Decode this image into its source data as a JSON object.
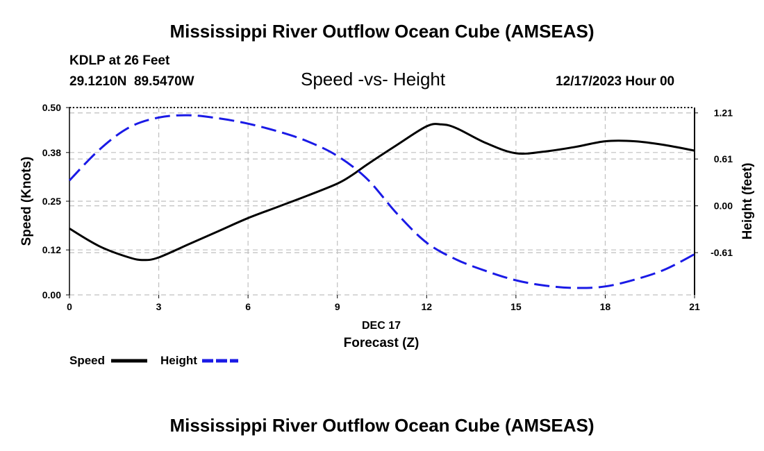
{
  "header": {
    "title_top": "Mississippi River Outflow Ocean Cube (AMSEAS)",
    "station": "KDLP at 26 Feet",
    "coords": "29.1210N  89.5470W",
    "subtitle": "Speed -vs- Height",
    "datetime": "12/17/2023 Hour 00",
    "title_bottom": "Mississippi River Outflow Ocean Cube (AMSEAS)"
  },
  "chart_data": {
    "type": "line",
    "title": "Speed -vs- Height",
    "xlabel_date": "DEC 17",
    "xlabel": "Forecast (Z)",
    "ylabel": "Speed (Knots)",
    "y2label": "Height (feet)",
    "xlim": [
      0,
      21
    ],
    "ylim": [
      0,
      0.5
    ],
    "y2lim": [
      -1.16,
      1.28
    ],
    "x_ticks": [
      0,
      3,
      6,
      9,
      12,
      15,
      18,
      21
    ],
    "y_ticks": [
      0,
      0.12,
      0.25,
      0.38,
      0.5
    ],
    "y_tick_labels": [
      "0.00",
      "0.12",
      "0.25",
      "0.38",
      "0.50"
    ],
    "y2_ticks": [
      -0.61,
      0,
      0.61,
      1.21
    ],
    "y2_tick_labels": [
      "-0.61",
      "0.00",
      "0.61",
      "1.21"
    ],
    "grid": true,
    "series": [
      {
        "name": "Speed",
        "axis": "left",
        "color": "#000000",
        "style": "solid",
        "x": [
          0,
          1,
          2,
          2.5,
          3,
          4,
          5,
          6,
          7,
          8,
          9,
          9.5,
          10,
          11,
          12,
          12.5,
          13,
          14,
          15,
          16,
          17,
          18,
          19,
          20,
          21
        ],
        "values": [
          0.177,
          0.13,
          0.1,
          0.093,
          0.1,
          0.135,
          0.17,
          0.205,
          0.235,
          0.265,
          0.297,
          0.32,
          0.348,
          0.4,
          0.45,
          0.455,
          0.445,
          0.405,
          0.378,
          0.383,
          0.395,
          0.41,
          0.41,
          0.4,
          0.385
        ]
      },
      {
        "name": "Height",
        "axis": "right",
        "color": "#1a1ae6",
        "style": "dashed",
        "x": [
          0,
          1,
          2,
          3,
          4,
          5,
          6,
          7,
          8,
          9,
          10,
          11,
          12,
          13,
          14,
          15,
          16,
          17,
          18,
          19,
          20,
          21
        ],
        "values": [
          0.33,
          0.73,
          1.02,
          1.15,
          1.18,
          1.14,
          1.07,
          0.97,
          0.84,
          0.65,
          0.35,
          -0.1,
          -0.48,
          -0.7,
          -0.85,
          -0.97,
          -1.04,
          -1.07,
          -1.05,
          -0.96,
          -0.83,
          -0.63
        ]
      }
    ],
    "legend": [
      {
        "label": "Speed",
        "color": "#000000",
        "style": "solid"
      },
      {
        "label": "Height",
        "color": "#1a1ae6",
        "style": "dashed"
      }
    ]
  }
}
